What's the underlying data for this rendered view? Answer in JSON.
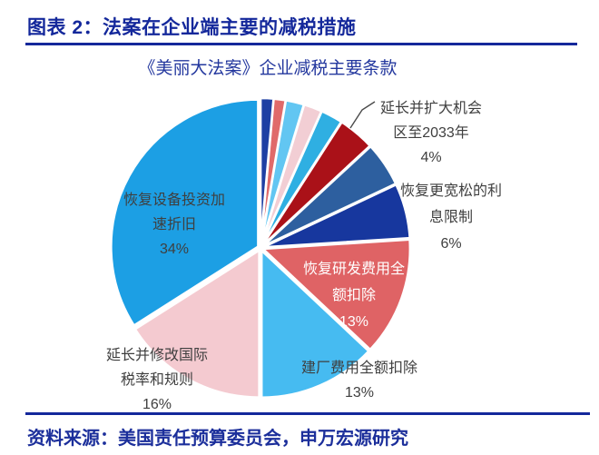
{
  "header": {
    "title": "图表 2：法案在企业端主要的减税措施"
  },
  "chart": {
    "title": "《美丽大法案》企业减税主要条款"
  },
  "chart_data": {
    "type": "pie",
    "title": "《美丽大法案》企业减税主要条款",
    "direction": "clockwise",
    "start_angle": "12-oclock",
    "legend": "none",
    "slices": [
      {
        "name": "small-navy-sliver",
        "label": "",
        "value": 1.4,
        "color": "#1e3fa3"
      },
      {
        "name": "small-red-sliver",
        "label": "",
        "value": 1.3,
        "color": "#e06a6a"
      },
      {
        "name": "small-lightblue-sliver",
        "label": "",
        "value": 2.0,
        "color": "#62c6f2"
      },
      {
        "name": "small-pink-sliver",
        "label": "",
        "value": 2.0,
        "color": "#f2ced4"
      },
      {
        "name": "small-skyblue-sliver",
        "label": "",
        "value": 2.4,
        "color": "#2fafe2"
      },
      {
        "name": "opportunity-zone",
        "label": "延长并扩大机会区至2033年",
        "value": 4,
        "color": "#aa1118",
        "pct": "4%"
      },
      {
        "name": "unlabeled-steelblue",
        "label": "",
        "value": 4.9,
        "color": "#2d5f9f"
      },
      {
        "name": "interest-limit",
        "label": "恢复更宽松的利息限制",
        "value": 6,
        "color": "#17379e",
        "pct": "6%"
      },
      {
        "name": "rd-expense-deduction",
        "label": "恢复研发费用全额扣除",
        "value": 13,
        "color": "#df6365",
        "pct": "13%"
      },
      {
        "name": "factory-expense-deduction",
        "label": "建厂费用全额扣除",
        "value": 13,
        "color": "#46bbf1",
        "pct": "13%"
      },
      {
        "name": "international-tax-rules",
        "label": "延长并修改国际税率和规则",
        "value": 16,
        "color": "#f4cad0",
        "pct": "16%"
      },
      {
        "name": "equipment-depreciation",
        "label": "恢复设备投资加速折旧",
        "value": 34,
        "color": "#1c9fe4",
        "pct": "34%"
      }
    ]
  },
  "labels": {
    "equipment": {
      "lines": [
        "恢复设备投资加",
        "速折旧",
        "34%"
      ]
    },
    "international": {
      "lines": [
        "延长并修改国际",
        "税率和规则",
        "16%"
      ]
    },
    "construction": {
      "lines": [
        "建厂费用全额扣除",
        "13%"
      ]
    },
    "research": {
      "lines": [
        "恢复研发费用全",
        "额扣除",
        "13%"
      ]
    },
    "opportunity": {
      "lines": [
        "延长并扩大机会",
        "区至2033年",
        "4%"
      ]
    },
    "interest": {
      "lines": [
        "恢复更宽松的利",
        "息限制",
        "6%"
      ]
    }
  },
  "footer": {
    "source": "资料来源：美国责任预算委员会，申万宏源研究"
  },
  "colors": {
    "accent_navy": "#14289b",
    "label_text": "#3f3f3f",
    "slice_border": "#ffffff"
  }
}
